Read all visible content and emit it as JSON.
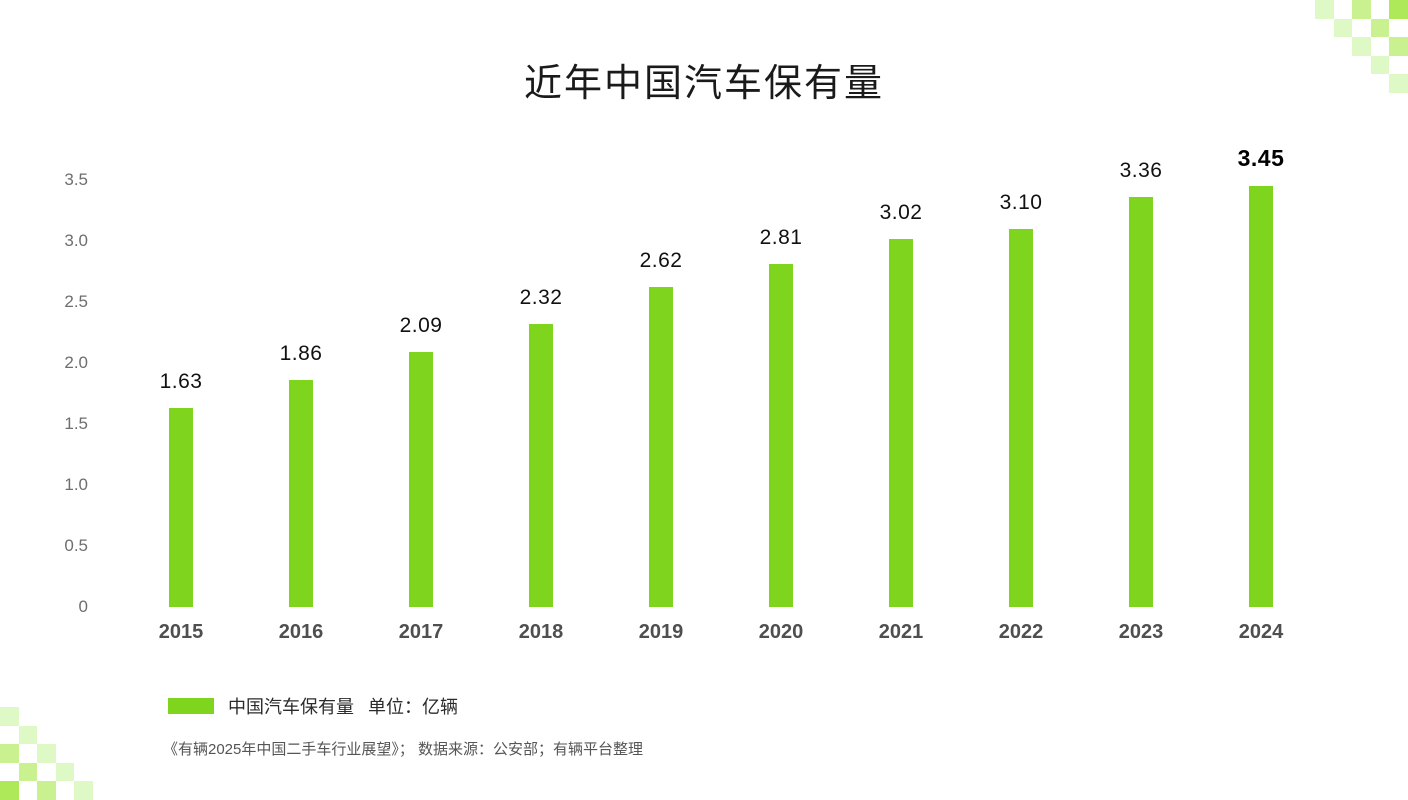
{
  "chart_data": {
    "type": "bar",
    "title": "近年中国汽车保有量",
    "categories": [
      "2015",
      "2016",
      "2017",
      "2018",
      "2019",
      "2020",
      "2021",
      "2022",
      "2023",
      "2024"
    ],
    "values": [
      1.63,
      1.86,
      2.09,
      2.32,
      2.62,
      2.81,
      3.02,
      3.1,
      3.36,
      3.45
    ],
    "value_labels": [
      "1.63",
      "1.86",
      "2.09",
      "2.32",
      "2.62",
      "2.81",
      "3.02",
      "3.10",
      "3.36",
      "3.45"
    ],
    "highlight_last_label": true,
    "ylim": [
      0,
      3.5
    ],
    "yticks": [
      0,
      0.5,
      1.0,
      1.5,
      2.0,
      2.5,
      3.0,
      3.5
    ],
    "ytick_labels": [
      "0",
      "0.5",
      "1.0",
      "1.5",
      "2.0",
      "2.5",
      "3.0",
      "3.5"
    ],
    "grid": false,
    "axis_lines": false,
    "bar_color": "#7fd41e",
    "legend": {
      "position": "bottom-left",
      "swatch_color": "#7fd41e",
      "label": "中国汽车保有量",
      "unit": "单位：亿辆"
    },
    "source_note": "《有辆2025年中国二手车行业展望》； 数据来源：公安部；有辆平台整理"
  },
  "decoration": {
    "checker_colors": {
      "dark": "#aee95a",
      "medium": "#c9f18f",
      "light": "#def8c6"
    }
  }
}
